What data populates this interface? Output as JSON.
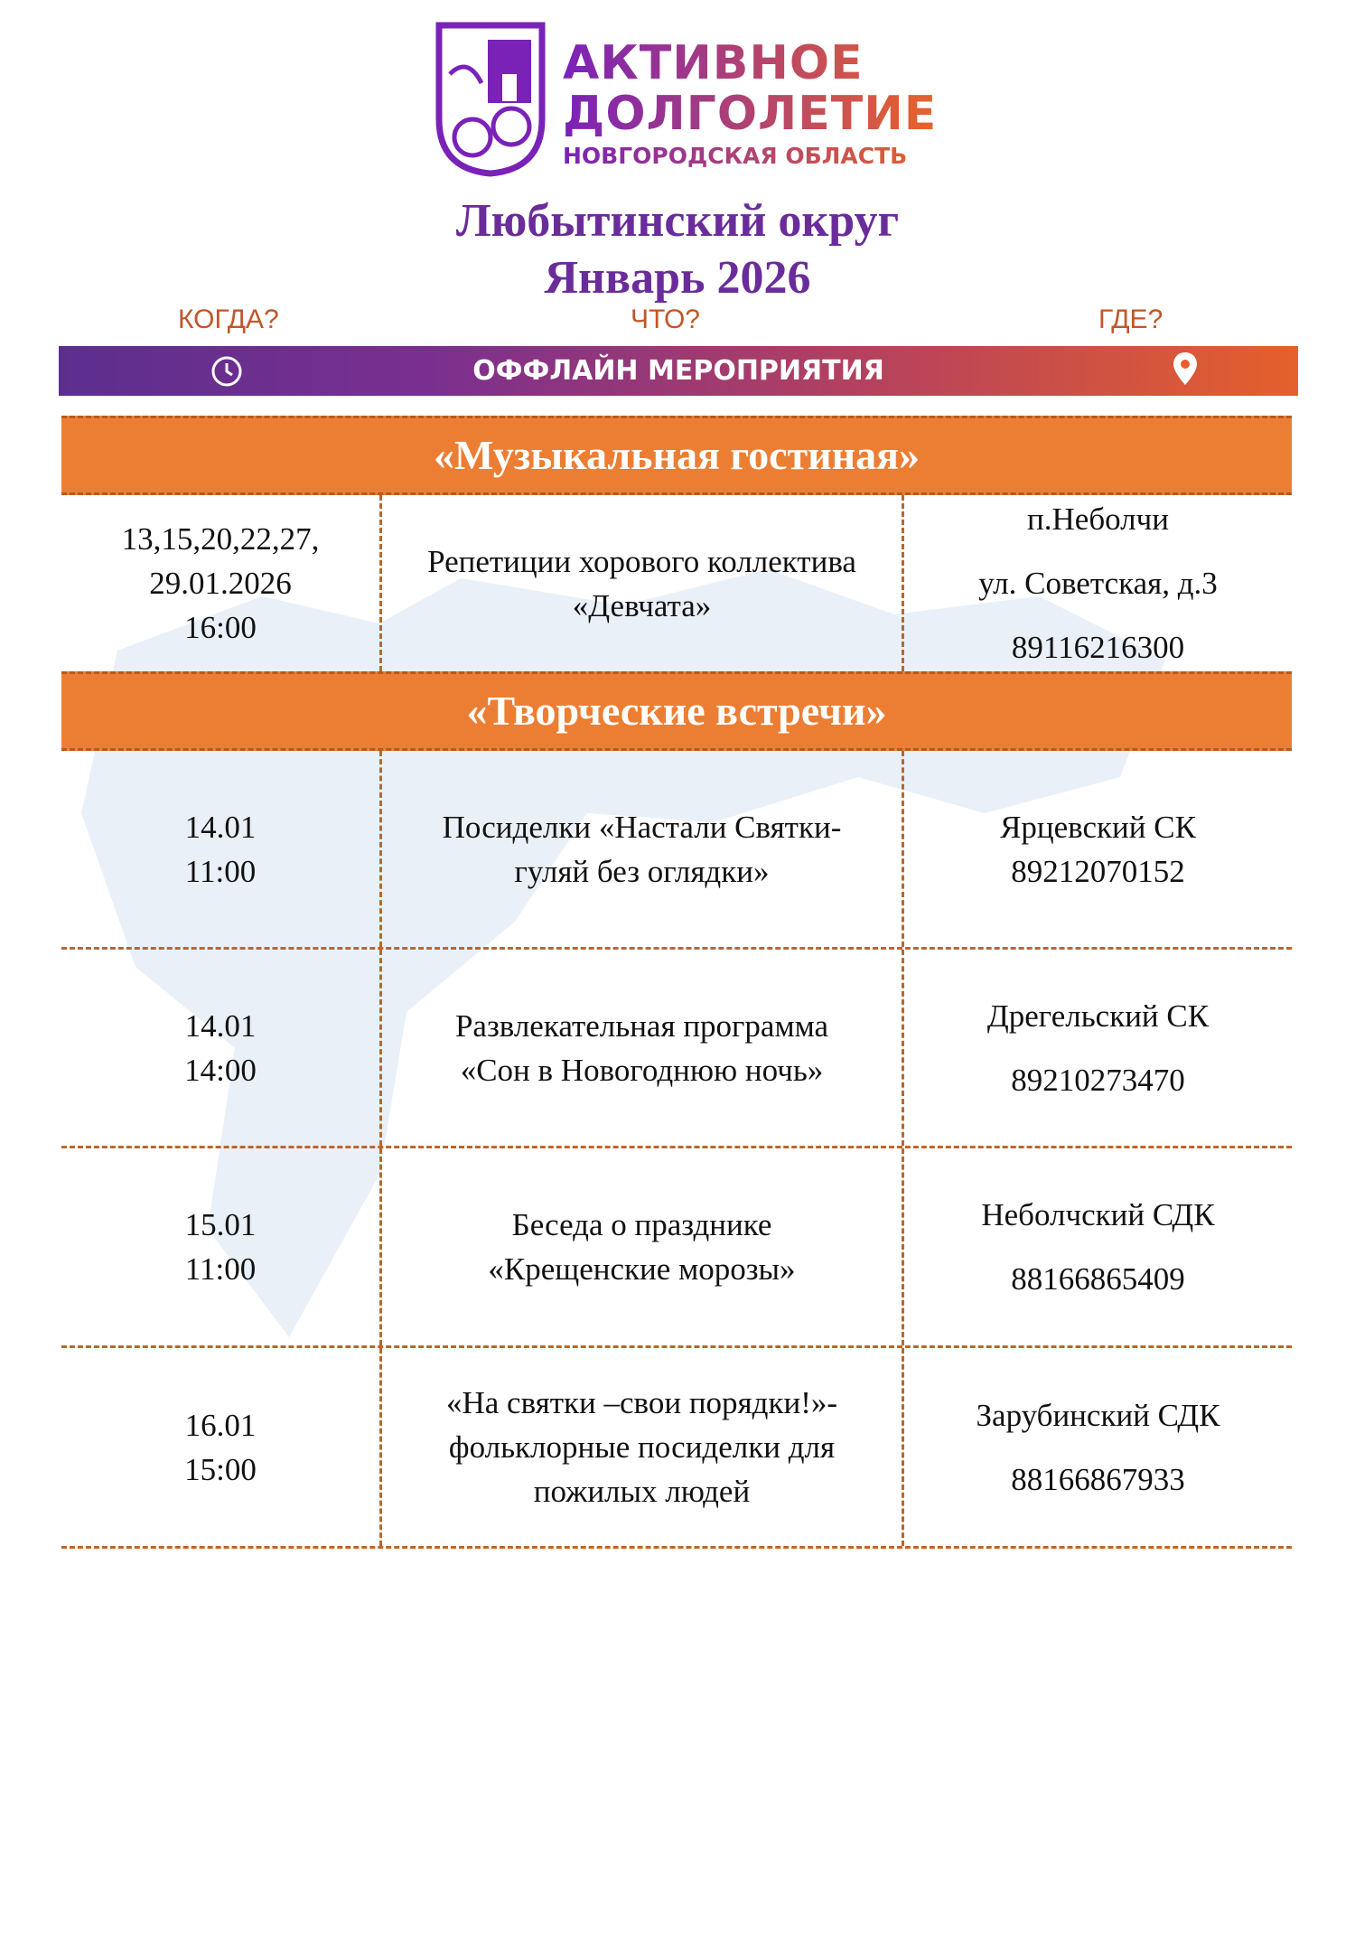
{
  "logo": {
    "line1": "АКТИВНОЕ",
    "line2": "ДОЛГОЛЕТИЕ",
    "line3": "НОВГОРОДСКАЯ ОБЛАСТЬ"
  },
  "header": {
    "title": "Любытинский округ",
    "subtitle": "Январь 2026"
  },
  "columns": {
    "when": "КОГДА?",
    "what": "ЧТО?",
    "where": "ГДЕ?"
  },
  "banner": {
    "label": "ОФФЛАЙН МЕРОПРИЯТИЯ",
    "left_icon": "clock-icon",
    "right_icon": "location-pin-icon"
  },
  "colors": {
    "accent_orange": "#ec7e34",
    "purple": "#6a2c9a"
  },
  "sections": [
    {
      "title": "«Музыкальная гостиная»",
      "events": [
        {
          "when": [
            "13,15,20,22,27,",
            "29.01.2026",
            "16:00"
          ],
          "what": [
            "Репетиции хорового коллектива",
            "«Девчата»"
          ],
          "where": [
            "п.Неболчи",
            "ул. Советская, д.3",
            "89116216300"
          ]
        }
      ]
    },
    {
      "title": "«Творческие встречи»",
      "events": [
        {
          "when": [
            "14.01",
            "11:00"
          ],
          "what": [
            "Посиделки «Настали Святки-",
            "гуляй без оглядки»"
          ],
          "where": [
            "Ярцевский СК",
            "89212070152"
          ]
        },
        {
          "when": [
            "14.01",
            "14:00"
          ],
          "what": [
            "Развлекательная программа",
            "«Сон в Новогоднюю ночь»"
          ],
          "where": [
            "Дрегельский СК",
            "89210273470"
          ]
        },
        {
          "when": [
            "15.01",
            "11:00"
          ],
          "what": [
            "Беседа о празднике",
            "«Крещенские морозы»"
          ],
          "where": [
            "Неболчский СДК",
            "88166865409"
          ]
        },
        {
          "when": [
            "16.01",
            "15:00"
          ],
          "what": [
            "«На святки –свои порядки!»-",
            "фольклорные посиделки для",
            "пожилых людей"
          ],
          "where": [
            "Зарубинский СДК",
            "88166867933"
          ]
        }
      ]
    }
  ]
}
